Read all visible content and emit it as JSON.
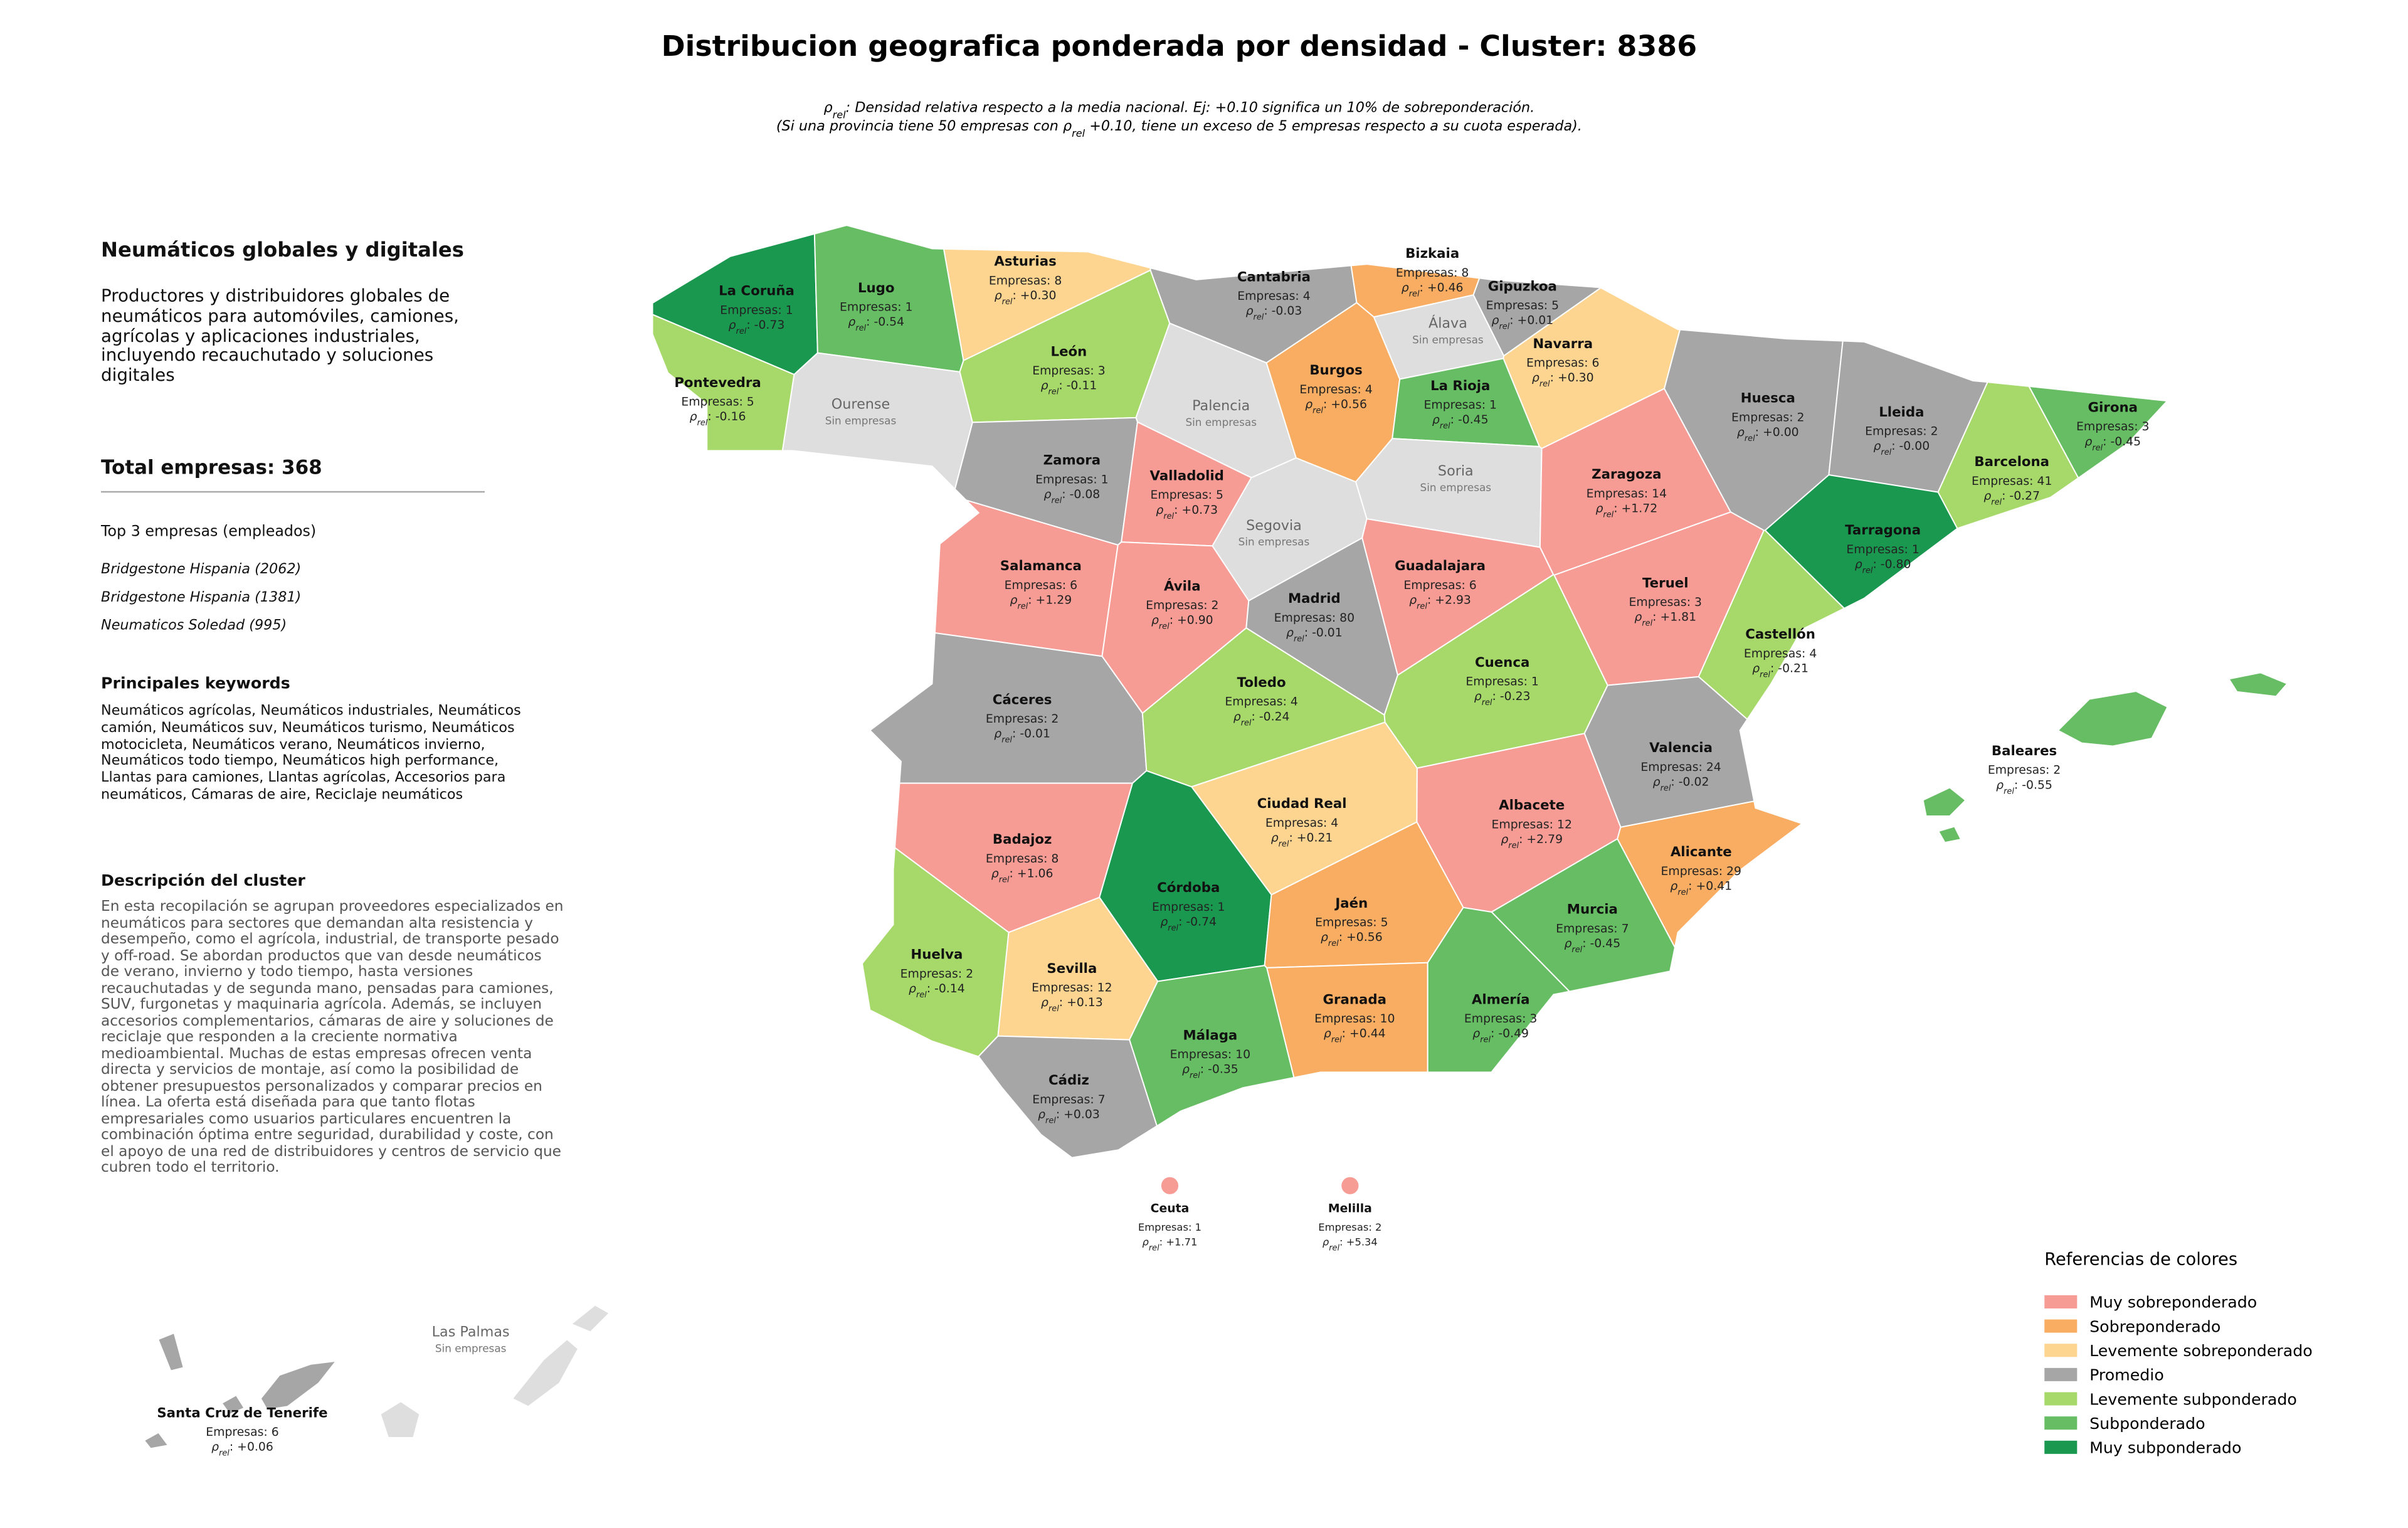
{
  "title": "Distribucion geografica ponderada por densidad - Cluster: 8386",
  "subtitle": [
    [
      {
        "text": "ρ"
      },
      {
        "sub": "rel"
      },
      {
        "text": ": Densidad relativa respecto a la media nacional. Ej: +0.10 significa un 10% de sobreponderación."
      }
    ],
    [
      {
        "text": "(Si una provincia tiene 50 empresas con ρ"
      },
      {
        "sub": "rel"
      },
      {
        "text": " +0.10, tiene un exceso de 5 empresas respecto a su cuota esperada)."
      }
    ]
  ],
  "rho_symbol": "ρ",
  "rho_subscript": "rel",
  "panel": {
    "heading": "Neumáticos globales y digitales",
    "summary": "Productores y distribuidores globales de neumáticos para automóviles, camiones, agrícolas y aplicaciones industriales, incluyendo recauchutado y soluciones digitales",
    "total": "Total empresas: 368",
    "top_heading": "Top 3 empresas (empleados)",
    "top": [
      "Bridgestone Hispania (2062)",
      "Bridgestone Hispania (1381)",
      "Neumaticos Soledad (995)"
    ],
    "keywords_heading": "Principales keywords",
    "keywords": "Neumáticos agrícolas, Neumáticos industriales, Neumáticos camión, Neumáticos suv, Neumáticos turismo, Neumáticos motocicleta, Neumáticos verano, Neumáticos invierno, Neumáticos todo tiempo, Neumáticos high performance, Llantas para camiones, Llantas agrícolas, Accesorios para neumáticos, Cámaras de aire, Reciclaje neumáticos",
    "cluster_heading": "Descripción del cluster",
    "cluster_text": "En esta recopilación se agrupan proveedores especializados en neumáticos para sectores que demandan alta resistencia y desempeño, como el agrícola, industrial, de transporte pesado y off-road. Se abordan productos que van desde neumáticos de verano, invierno y todo tiempo, hasta versiones recauchutadas y de segunda mano, pensadas para camiones, SUV, furgonetas y maquinaria agrícola. Además, se incluyen accesorios complementarios, cámaras de aire y soluciones de reciclaje que responden a la creciente normativa medioambiental. Muchas de estas empresas ofrecen venta directa y servicios de montaje, así como la posibilidad de obtener presupuestos personalizados y comparar precios en línea. La oferta está diseñada para que tanto flotas empresariales como usuarios particulares encuentren la combinación óptima entre seguridad, durabilidad y coste, con el apoyo de una red de distribuidores y centros de servicio que cubren todo el territorio."
  },
  "provinces": [
    {
      "name": "La Coruña",
      "empresas": "Empresas: 1",
      "rho": ": -0.73",
      "color": "#1a9850"
    },
    {
      "name": "Lugo",
      "empresas": "Empresas: 1",
      "rho": ": -0.54",
      "color": "#66bd63"
    },
    {
      "name": "Asturias",
      "empresas": "Empresas: 8",
      "rho": ": +0.30",
      "color": "#fdd591"
    },
    {
      "name": "Cantabria",
      "empresas": "Empresas: 4",
      "rho": ": -0.03",
      "color": "#a6a6a6"
    },
    {
      "name": "Bizkaia",
      "empresas": "Empresas: 8",
      "rho": ": +0.46",
      "color": "#f8ad62"
    },
    {
      "name": "Gipuzkoa",
      "empresas": "Empresas: 5",
      "rho": ": +0.01",
      "color": "#a6a6a6"
    },
    {
      "name": "Álava",
      "status": "Sin empresas",
      "color": "#dedede"
    },
    {
      "name": "Navarra",
      "empresas": "Empresas: 6",
      "rho": ": +0.30",
      "color": "#fdd591"
    },
    {
      "name": "Pontevedra",
      "empresas": "Empresas: 5",
      "rho": ": -0.16",
      "color": "#a6d96a"
    },
    {
      "name": "Ourense",
      "status": "Sin empresas",
      "color": "#dedede"
    },
    {
      "name": "León",
      "empresas": "Empresas: 3",
      "rho": ": -0.11",
      "color": "#a6d96a"
    },
    {
      "name": "Palencia",
      "status": "Sin empresas",
      "color": "#dedede"
    },
    {
      "name": "Burgos",
      "empresas": "Empresas: 4",
      "rho": ": +0.56",
      "color": "#f8ad62"
    },
    {
      "name": "La Rioja",
      "empresas": "Empresas: 1",
      "rho": ": -0.45",
      "color": "#66bd63"
    },
    {
      "name": "Huesca",
      "empresas": "Empresas: 2",
      "rho": ": +0.00",
      "color": "#a6a6a6"
    },
    {
      "name": "Lleida",
      "empresas": "Empresas: 2",
      "rho": ": -0.00",
      "color": "#a6a6a6"
    },
    {
      "name": "Girona",
      "empresas": "Empresas: 3",
      "rho": ": -0.45",
      "color": "#66bd63"
    },
    {
      "name": "Zamora",
      "empresas": "Empresas: 1",
      "rho": ": -0.08",
      "color": "#a6a6a6"
    },
    {
      "name": "Valladolid",
      "empresas": "Empresas: 5",
      "rho": ": +0.73",
      "color": "#f79c95"
    },
    {
      "name": "Soria",
      "status": "Sin empresas",
      "color": "#dedede"
    },
    {
      "name": "Zaragoza",
      "empresas": "Empresas: 14",
      "rho": ": +1.72",
      "color": "#f79c95"
    },
    {
      "name": "Barcelona",
      "empresas": "Empresas: 41",
      "rho": ": -0.27",
      "color": "#a6d96a"
    },
    {
      "name": "Tarragona",
      "empresas": "Empresas: 1",
      "rho": ": -0.80",
      "color": "#1a9850"
    },
    {
      "name": "Segovia",
      "status": "Sin empresas",
      "color": "#dedede"
    },
    {
      "name": "Salamanca",
      "empresas": "Empresas: 6",
      "rho": ": +1.29",
      "color": "#f79c95"
    },
    {
      "name": "Ávila",
      "empresas": "Empresas: 2",
      "rho": ": +0.90",
      "color": "#f79c95"
    },
    {
      "name": "Guadalajara",
      "empresas": "Empresas: 6",
      "rho": ": +2.93",
      "color": "#f79c95"
    },
    {
      "name": "Madrid",
      "empresas": "Empresas: 80",
      "rho": ": -0.01",
      "color": "#a6a6a6"
    },
    {
      "name": "Teruel",
      "empresas": "Empresas: 3",
      "rho": ": +1.81",
      "color": "#f79c95"
    },
    {
      "name": "Castellón",
      "empresas": "Empresas: 4",
      "rho": ": -0.21",
      "color": "#a6d96a"
    },
    {
      "name": "Cáceres",
      "empresas": "Empresas: 2",
      "rho": ": -0.01",
      "color": "#a6a6a6"
    },
    {
      "name": "Toledo",
      "empresas": "Empresas: 4",
      "rho": ": -0.24",
      "color": "#a6d96a"
    },
    {
      "name": "Cuenca",
      "empresas": "Empresas: 1",
      "rho": ": -0.23",
      "color": "#a6d96a"
    },
    {
      "name": "Valencia",
      "empresas": "Empresas: 24",
      "rho": ": -0.02",
      "color": "#a6a6a6"
    },
    {
      "name": "Baleares",
      "empresas": "Empresas: 2",
      "rho": ": -0.55",
      "color": "#66bd63"
    },
    {
      "name": "Ciudad Real",
      "empresas": "Empresas: 4",
      "rho": ": +0.21",
      "color": "#fdd591"
    },
    {
      "name": "Albacete",
      "empresas": "Empresas: 12",
      "rho": ": +2.79",
      "color": "#f79c95"
    },
    {
      "name": "Badajoz",
      "empresas": "Empresas: 8",
      "rho": ": +1.06",
      "color": "#f79c95"
    },
    {
      "name": "Alicante",
      "empresas": "Empresas: 29",
      "rho": ": +0.41",
      "color": "#f8ad62"
    },
    {
      "name": "Córdoba",
      "empresas": "Empresas: 1",
      "rho": ": -0.74",
      "color": "#1a9850"
    },
    {
      "name": "Jaén",
      "empresas": "Empresas: 5",
      "rho": ": +0.56",
      "color": "#f8ad62"
    },
    {
      "name": "Murcia",
      "empresas": "Empresas: 7",
      "rho": ": -0.45",
      "color": "#66bd63"
    },
    {
      "name": "Huelva",
      "empresas": "Empresas: 2",
      "rho": ": -0.14",
      "color": "#a6d96a"
    },
    {
      "name": "Sevilla",
      "empresas": "Empresas: 12",
      "rho": ": +0.13",
      "color": "#fdd591"
    },
    {
      "name": "Granada",
      "empresas": "Empresas: 10",
      "rho": ": +0.44",
      "color": "#f8ad62"
    },
    {
      "name": "Almería",
      "empresas": "Empresas: 3",
      "rho": ": -0.49",
      "color": "#66bd63"
    },
    {
      "name": "Málaga",
      "empresas": "Empresas: 10",
      "rho": ": -0.35",
      "color": "#66bd63"
    },
    {
      "name": "Cádiz",
      "empresas": "Empresas: 7",
      "rho": ": +0.03",
      "color": "#a6a6a6"
    },
    {
      "name": "Ceuta",
      "empresas": "Empresas: 1",
      "rho": ": +1.71",
      "color": "#f79c95"
    },
    {
      "name": "Melilla",
      "empresas": "Empresas: 2",
      "rho": ": +5.34",
      "color": "#f79c95"
    },
    {
      "name": "Las Palmas",
      "status": "Sin empresas",
      "color": "#dedede"
    },
    {
      "name": "Santa Cruz de Tenerife",
      "empresas": "Empresas: 6",
      "rho": ": +0.06",
      "color": "#a6a6a6"
    }
  ],
  "legend": {
    "title": "Referencias de colores",
    "entries": [
      {
        "name": "Muy sobreponderado",
        "color": "#f79c95"
      },
      {
        "name": "Sobreponderado",
        "color": "#f8ad62"
      },
      {
        "name": "Levemente sobreponderado",
        "color": "#fdd591"
      },
      {
        "name": "Promedio",
        "color": "#a6a6a6"
      },
      {
        "name": "Levemente subponderado",
        "color": "#a6d96a"
      },
      {
        "name": "Subponderado",
        "color": "#66bd63"
      },
      {
        "name": "Muy subponderado",
        "color": "#1a9850"
      }
    ]
  }
}
